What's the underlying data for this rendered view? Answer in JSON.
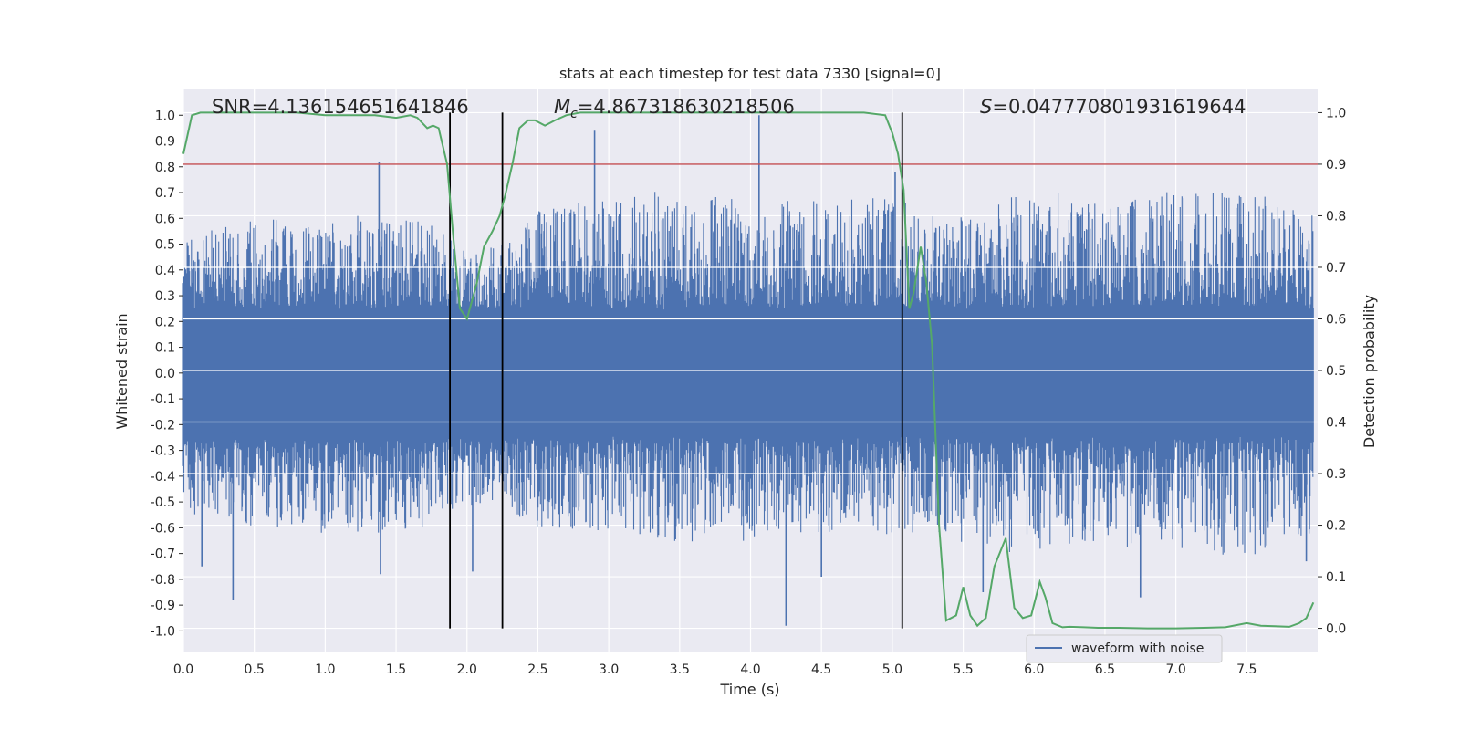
{
  "chart_data": {
    "type": "line",
    "title": "stats at each timestep for test data 7330 [signal=0]",
    "xlabel": "Time (s)",
    "ylabel": "Whitened strain",
    "y2label": "Detection probability",
    "xlim": [
      0.0,
      8.0
    ],
    "ylim": [
      -1.08,
      1.1
    ],
    "y2lim": [
      -0.045,
      1.045
    ],
    "xticks": [
      0.0,
      0.5,
      1.0,
      1.5,
      2.0,
      2.5,
      3.0,
      3.5,
      4.0,
      4.5,
      5.0,
      5.5,
      6.0,
      6.5,
      7.0,
      7.5
    ],
    "yticks": [
      -1.0,
      -0.9,
      -0.8,
      -0.7,
      -0.6,
      -0.5,
      -0.4,
      -0.3,
      -0.2,
      -0.1,
      0.0,
      0.1,
      0.2,
      0.3,
      0.4,
      0.5,
      0.6,
      0.7,
      0.8,
      0.9,
      1.0
    ],
    "y2ticks": [
      0.0,
      0.1,
      0.2,
      0.3,
      0.4,
      0.5,
      0.6,
      0.7,
      0.8,
      0.9,
      1.0
    ],
    "annotations": {
      "snr": "SNR=4.136154651641846",
      "mc_symbol": "M",
      "mc_sub": "c",
      "mc_value": "=4.867318630218506",
      "s_symbol": "S",
      "s_value": "=0.047770801931619644"
    },
    "threshold": {
      "value": 0.9,
      "axis": "right",
      "color": "#c44e52"
    },
    "vertical_lines": [
      1.88,
      2.25,
      5.07
    ],
    "legend": {
      "label": "waveform with noise",
      "position": "lower-right"
    },
    "series": [
      {
        "name": "waveform with noise",
        "axis": "left",
        "color": "#4c72b0",
        "envelope": {
          "x": [
            0.0,
            0.5,
            1.0,
            1.5,
            1.8,
            2.0,
            2.25,
            2.5,
            3.0,
            3.5,
            4.0,
            4.5,
            5.0,
            5.3,
            5.5,
            6.0,
            6.5,
            7.0,
            7.5,
            8.0
          ],
          "upper": [
            0.5,
            0.58,
            0.58,
            0.6,
            0.55,
            0.45,
            0.48,
            0.62,
            0.68,
            0.68,
            0.66,
            0.65,
            0.68,
            0.6,
            0.62,
            0.7,
            0.66,
            0.68,
            0.7,
            0.6
          ],
          "lower": [
            -0.52,
            -0.58,
            -0.6,
            -0.62,
            -0.55,
            -0.5,
            -0.52,
            -0.6,
            -0.62,
            -0.65,
            -0.62,
            -0.62,
            -0.62,
            -0.6,
            -0.65,
            -0.7,
            -0.64,
            -0.66,
            -0.7,
            -0.6
          ]
        },
        "spikes": [
          {
            "x": 0.13,
            "y": -0.75
          },
          {
            "x": 0.35,
            "y": -0.88
          },
          {
            "x": 1.38,
            "y": 0.82
          },
          {
            "x": 1.39,
            "y": -0.78
          },
          {
            "x": 2.04,
            "y": -0.77
          },
          {
            "x": 2.9,
            "y": 0.94
          },
          {
            "x": 4.06,
            "y": 1.0
          },
          {
            "x": 4.25,
            "y": -0.98
          },
          {
            "x": 4.5,
            "y": -0.79
          },
          {
            "x": 5.02,
            "y": 0.78
          },
          {
            "x": 5.64,
            "y": -0.85
          },
          {
            "x": 6.75,
            "y": -0.87
          },
          {
            "x": 7.92,
            "y": -0.73
          }
        ]
      },
      {
        "name": "detection probability",
        "axis": "right",
        "color": "#55a868",
        "x": [
          0.0,
          0.06,
          0.12,
          0.2,
          0.4,
          0.8,
          1.0,
          1.2,
          1.35,
          1.5,
          1.6,
          1.65,
          1.72,
          1.76,
          1.8,
          1.86,
          1.9,
          1.95,
          2.0,
          2.07,
          2.12,
          2.18,
          2.23,
          2.27,
          2.32,
          2.37,
          2.43,
          2.48,
          2.55,
          2.62,
          2.7,
          2.8,
          3.0,
          3.5,
          4.0,
          4.3,
          4.5,
          4.8,
          4.95,
          5.0,
          5.04,
          5.08,
          5.12,
          5.15,
          5.2,
          5.24,
          5.28,
          5.33,
          5.38,
          5.45,
          5.5,
          5.55,
          5.6,
          5.66,
          5.72,
          5.8,
          5.86,
          5.92,
          5.98,
          6.04,
          6.08,
          6.13,
          6.2,
          6.25,
          6.35,
          6.45,
          6.6,
          6.8,
          7.0,
          7.2,
          7.35,
          7.5,
          7.6,
          7.7,
          7.8,
          7.87,
          7.92,
          7.97
        ],
        "y": [
          0.92,
          0.995,
          1.0,
          1.0,
          1.0,
          1.0,
          0.995,
          0.995,
          0.995,
          0.99,
          0.995,
          0.99,
          0.97,
          0.975,
          0.97,
          0.9,
          0.77,
          0.62,
          0.6,
          0.67,
          0.74,
          0.77,
          0.8,
          0.84,
          0.9,
          0.97,
          0.985,
          0.985,
          0.975,
          0.985,
          0.995,
          1.0,
          1.0,
          1.0,
          1.0,
          1.0,
          1.0,
          1.0,
          0.995,
          0.96,
          0.92,
          0.85,
          0.62,
          0.65,
          0.74,
          0.67,
          0.55,
          0.2,
          0.015,
          0.025,
          0.08,
          0.025,
          0.005,
          0.02,
          0.12,
          0.175,
          0.04,
          0.02,
          0.025,
          0.09,
          0.06,
          0.01,
          0.002,
          0.003,
          0.002,
          0.001,
          0.001,
          0.0,
          0.0,
          0.001,
          0.002,
          0.01,
          0.005,
          0.004,
          0.003,
          0.01,
          0.02,
          0.05
        ]
      }
    ]
  }
}
